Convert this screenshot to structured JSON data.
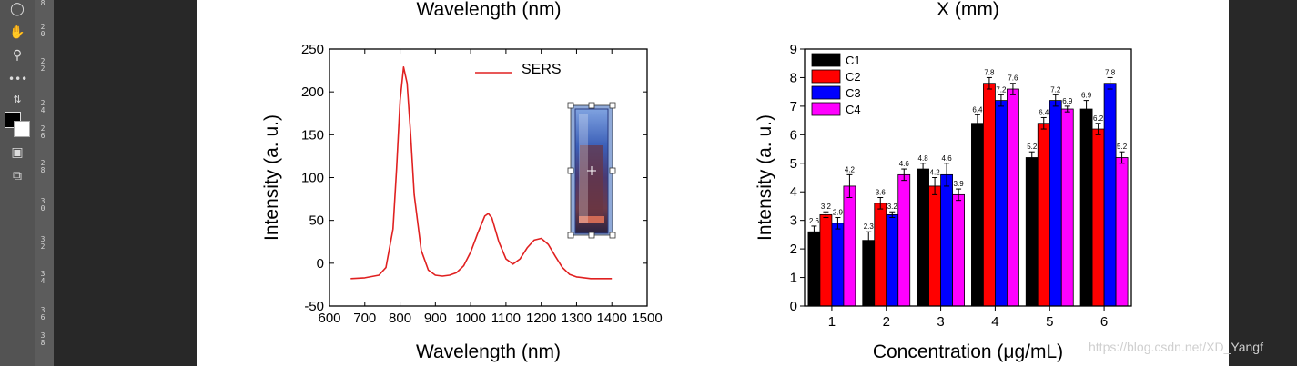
{
  "ruler_labels": [
    "8",
    "20",
    "22",
    "24",
    "26",
    "28",
    "30",
    "32",
    "34",
    "36",
    "38"
  ],
  "watermark": "https://blog.csdn.net/XD_Yangf",
  "colors": {
    "sers": "#e02020",
    "c1": "#000000",
    "c2": "#ff0000",
    "c3": "#0000ff",
    "c4": "#ff00ff"
  },
  "chart_data": [
    {
      "type": "line",
      "top_cut_label": "Wavelength (nm)",
      "xlabel": "Wavelength (nm)",
      "ylabel": "Intensity (a. u.)",
      "xlim": [
        600,
        1500
      ],
      "ylim": [
        -50,
        250
      ],
      "xticks": [
        600,
        700,
        800,
        900,
        1000,
        1100,
        1200,
        1300,
        1400,
        1500
      ],
      "yticks": [
        -50,
        0,
        50,
        100,
        150,
        200,
        250
      ],
      "legend": "top-right",
      "series": [
        {
          "name": "SERS",
          "x": [
            660,
            700,
            740,
            760,
            780,
            790,
            800,
            810,
            820,
            830,
            840,
            860,
            880,
            900,
            920,
            940,
            960,
            980,
            1000,
            1020,
            1040,
            1050,
            1060,
            1080,
            1100,
            1120,
            1140,
            1160,
            1180,
            1200,
            1220,
            1240,
            1260,
            1280,
            1300,
            1340,
            1400
          ],
          "values": [
            -18,
            -17,
            -14,
            -5,
            40,
            110,
            190,
            229,
            210,
            150,
            80,
            15,
            -8,
            -14,
            -15,
            -14,
            -11,
            -3,
            13,
            35,
            55,
            58,
            53,
            25,
            5,
            -1,
            5,
            18,
            27,
            29,
            22,
            8,
            -5,
            -13,
            -16,
            -18,
            -18
          ]
        }
      ]
    },
    {
      "type": "bar",
      "top_cut_label": "X (mm)",
      "xlabel": "Concentration (μg/mL)",
      "ylabel": "Intensity (a. u.)",
      "ylim": [
        0,
        9
      ],
      "yticks": [
        0,
        1,
        2,
        3,
        4,
        5,
        6,
        7,
        8,
        9
      ],
      "categories": [
        "1",
        "2",
        "3",
        "4",
        "5",
        "6"
      ],
      "legend": "top-left",
      "series": [
        {
          "name": "C1",
          "values": [
            2.6,
            2.3,
            4.8,
            6.4,
            5.2,
            6.9
          ],
          "errors": [
            0.2,
            0.3,
            0.2,
            0.3,
            0.2,
            0.3
          ],
          "labels": [
            "2.6",
            "2.3",
            "4.8",
            "6.4",
            "5.2",
            "6.9"
          ]
        },
        {
          "name": "C2",
          "values": [
            3.2,
            3.6,
            4.2,
            7.8,
            6.4,
            6.2
          ],
          "errors": [
            0.1,
            0.2,
            0.3,
            0.2,
            0.2,
            0.2
          ],
          "labels": [
            "3.2",
            "3.6",
            "4.2",
            "7.8",
            "6.4",
            "6.2"
          ]
        },
        {
          "name": "C3",
          "values": [
            2.9,
            3.2,
            4.6,
            7.2,
            7.2,
            7.8
          ],
          "errors": [
            0.2,
            0.1,
            0.4,
            0.2,
            0.2,
            0.2
          ],
          "labels": [
            "2.9",
            "3.2",
            "4.6",
            "7.2",
            "7.2",
            "7.8"
          ]
        },
        {
          "name": "C4",
          "values": [
            4.2,
            4.6,
            3.9,
            7.6,
            6.9,
            5.2
          ],
          "errors": [
            0.4,
            0.2,
            0.2,
            0.2,
            0.1,
            0.2
          ],
          "labels": [
            "4.2",
            "4.6",
            "3.9",
            "7.6",
            "6.9",
            "5.2"
          ]
        }
      ]
    }
  ]
}
